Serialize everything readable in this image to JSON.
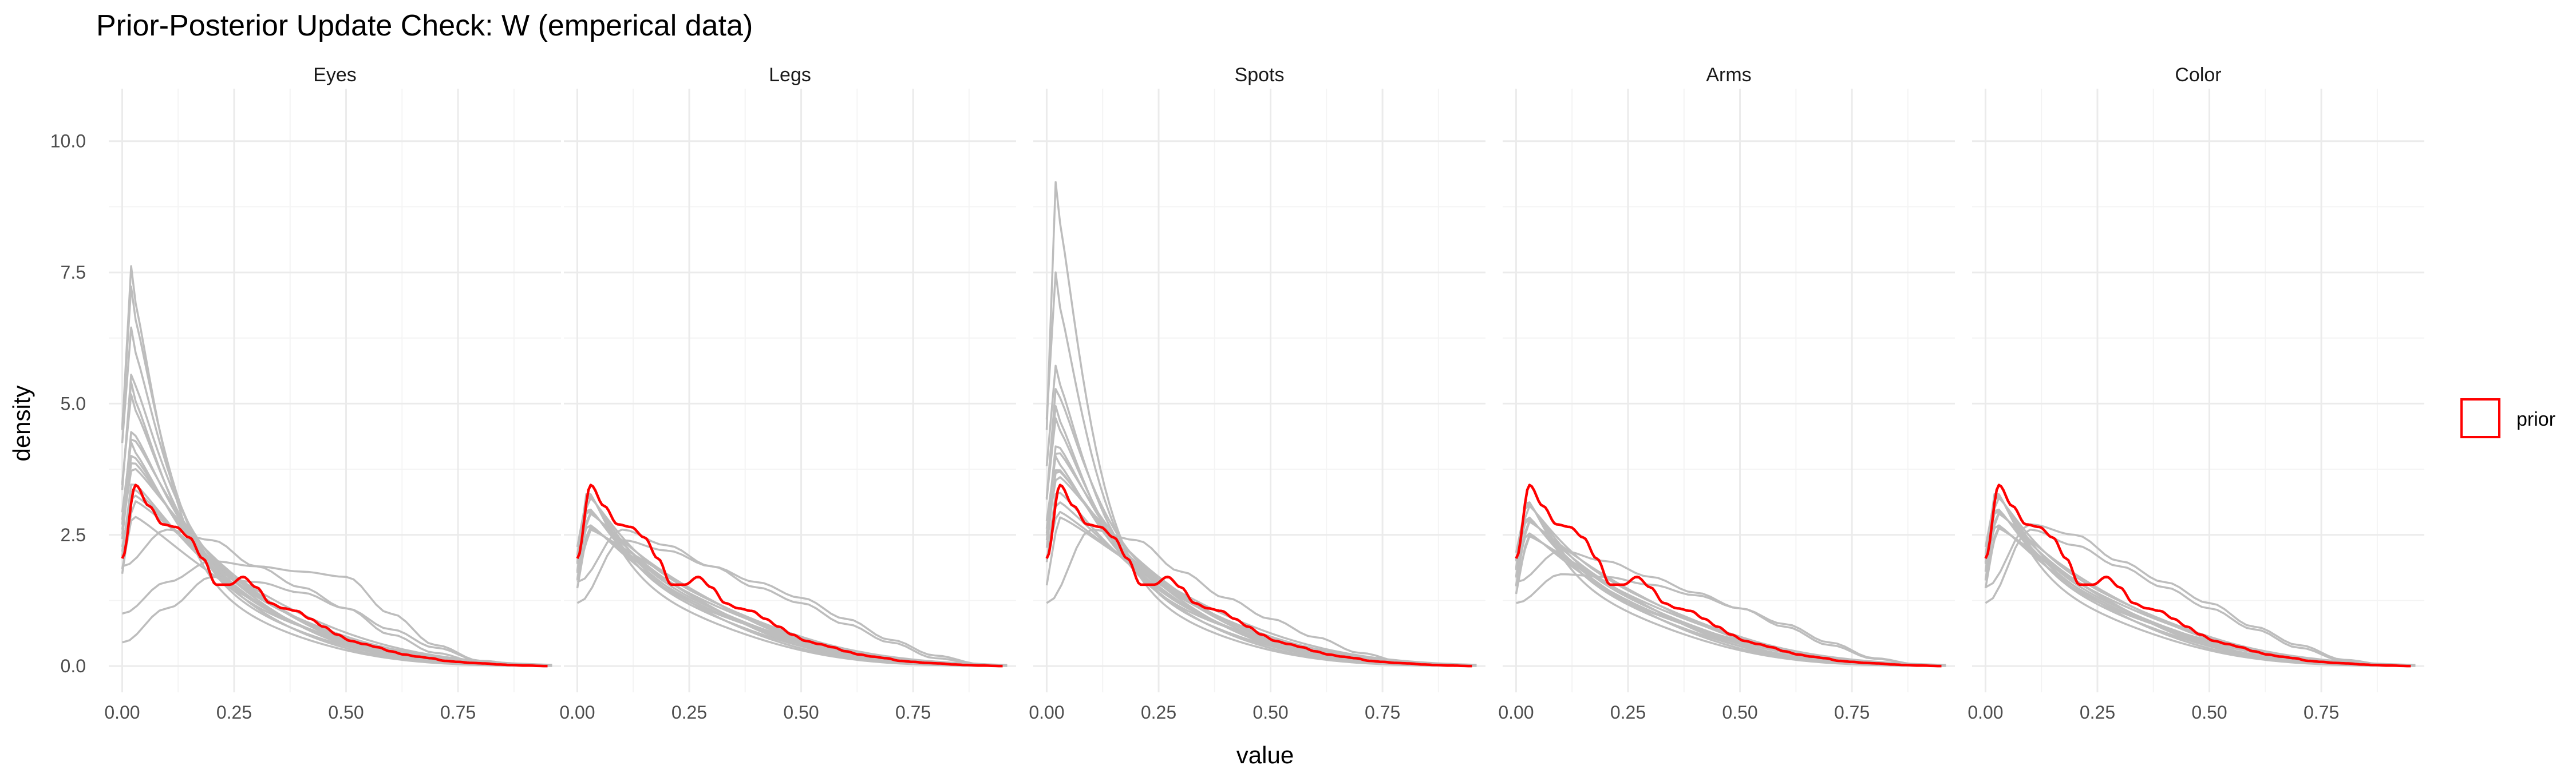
{
  "chart_data": {
    "type": "line",
    "title": "Prior-Posterior Update Check: W (emperical data)",
    "xlabel": "value",
    "ylabel": "density",
    "xlim": [
      -0.03,
      0.98
    ],
    "ylim": [
      -0.5,
      11.0
    ],
    "x_ticks": [
      0.0,
      0.25,
      0.5,
      0.75
    ],
    "x_tick_labels": [
      "0.00",
      "0.25",
      "0.50",
      "0.75"
    ],
    "y_ticks": [
      0.0,
      2.5,
      5.0,
      7.5,
      10.0
    ],
    "y_tick_labels": [
      "0.0",
      "2.5",
      "5.0",
      "7.5",
      "10.0"
    ],
    "legend": {
      "label": "prior",
      "position": "right",
      "color": "#ff0000"
    },
    "colors": {
      "posterior": "#bdbdbd",
      "prior": "#ff0000",
      "grid_major": "#ebebeb",
      "grid_minor": "#f4f4f4"
    },
    "prior": {
      "name": "prior",
      "x": [
        0.0,
        0.03,
        0.06,
        0.09,
        0.12,
        0.15,
        0.18,
        0.21,
        0.24,
        0.27,
        0.3,
        0.33,
        0.36,
        0.39,
        0.42,
        0.45,
        0.48,
        0.51,
        0.54,
        0.57,
        0.6,
        0.63,
        0.66,
        0.69,
        0.72,
        0.75,
        0.78,
        0.81,
        0.84,
        0.87,
        0.9,
        0.95
      ],
      "values": [
        2.05,
        3.45,
        3.05,
        2.7,
        2.65,
        2.45,
        2.05,
        1.55,
        1.55,
        1.7,
        1.5,
        1.2,
        1.1,
        1.05,
        0.9,
        0.75,
        0.6,
        0.48,
        0.42,
        0.36,
        0.28,
        0.22,
        0.18,
        0.15,
        0.1,
        0.08,
        0.06,
        0.05,
        0.03,
        0.02,
        0.01,
        0.0
      ]
    },
    "panels": [
      {
        "label": "Eyes",
        "posterior_peaks": [
          8.4,
          7.9,
          7.0,
          6.1,
          5.9,
          5.6,
          4.9,
          4.7,
          4.6,
          4.4,
          4.2,
          4.0,
          3.8,
          3.6,
          3.4,
          3.2,
          3.0
        ],
        "posterior_broad": [
          {
            "x": [
              0.0,
              0.1,
              0.2,
              0.3,
              0.4,
              0.5,
              0.6,
              0.7,
              0.8,
              0.9,
              0.95
            ],
            "values": [
              1.0,
              1.6,
              2.0,
              1.9,
              1.8,
              1.7,
              1.0,
              0.4,
              0.1,
              0.02,
              0.0
            ]
          },
          {
            "x": [
              0.0,
              0.1,
              0.2,
              0.3,
              0.4,
              0.5,
              0.6,
              0.7,
              0.8,
              0.9,
              0.95
            ],
            "values": [
              0.45,
              1.1,
              1.7,
              1.6,
              1.4,
              1.1,
              0.6,
              0.25,
              0.06,
              0.01,
              0.0
            ]
          },
          {
            "x": [
              0.0,
              0.1,
              0.2,
              0.3,
              0.4,
              0.5,
              0.6,
              0.7,
              0.8,
              0.9,
              0.95
            ],
            "values": [
              1.9,
              2.6,
              2.4,
              1.9,
              1.5,
              1.1,
              0.7,
              0.35,
              0.1,
              0.02,
              0.0
            ]
          }
        ]
      },
      {
        "label": "Legs",
        "posterior_peaks": [
          3.6,
          3.5,
          3.4,
          3.3,
          3.2,
          3.1,
          3.0,
          2.9,
          2.8,
          2.7,
          2.6,
          2.5
        ],
        "posterior_broad": [
          {
            "x": [
              0.0,
              0.1,
              0.2,
              0.3,
              0.4,
              0.5,
              0.6,
              0.7,
              0.8,
              0.9,
              0.95
            ],
            "values": [
              1.2,
              2.4,
              2.2,
              1.9,
              1.6,
              1.3,
              0.9,
              0.5,
              0.2,
              0.04,
              0.0
            ]
          },
          {
            "x": [
              0.0,
              0.1,
              0.2,
              0.3,
              0.4,
              0.5,
              0.6,
              0.7,
              0.8,
              0.9,
              0.95
            ],
            "values": [
              1.6,
              2.6,
              2.3,
              1.9,
              1.5,
              1.2,
              0.8,
              0.45,
              0.15,
              0.03,
              0.0
            ]
          }
        ]
      },
      {
        "label": "Spots",
        "posterior_peaks": [
          10.4,
          8.2,
          6.2,
          5.8,
          5.4,
          5.1,
          4.6,
          4.4,
          4.3,
          4.1,
          4.0,
          3.8,
          3.6,
          3.3,
          3.0,
          2.8
        ],
        "posterior_broad": [
          {
            "x": [
              0.0,
              0.1,
              0.2,
              0.3,
              0.4,
              0.5,
              0.6,
              0.7,
              0.8,
              0.9,
              0.95
            ],
            "values": [
              1.2,
              2.6,
              2.4,
              1.8,
              1.3,
              0.9,
              0.55,
              0.25,
              0.07,
              0.01,
              0.0
            ]
          }
        ]
      },
      {
        "label": "Arms",
        "posterior_peaks": [
          3.4,
          3.3,
          3.2,
          3.1,
          3.0,
          2.9,
          2.8,
          2.7,
          2.6,
          2.5,
          2.4
        ],
        "posterior_broad": [
          {
            "x": [
              0.0,
              0.1,
              0.2,
              0.3,
              0.4,
              0.5,
              0.6,
              0.7,
              0.8,
              0.9,
              0.95
            ],
            "values": [
              1.2,
              1.75,
              1.7,
              1.55,
              1.35,
              1.1,
              0.8,
              0.45,
              0.15,
              0.03,
              0.0
            ]
          },
          {
            "x": [
              0.0,
              0.1,
              0.2,
              0.3,
              0.4,
              0.5,
              0.6,
              0.7,
              0.8,
              0.9,
              0.95
            ],
            "values": [
              1.6,
              2.2,
              2.0,
              1.7,
              1.4,
              1.1,
              0.75,
              0.4,
              0.14,
              0.03,
              0.0
            ]
          }
        ]
      },
      {
        "label": "Color",
        "posterior_peaks": [
          3.6,
          3.5,
          3.4,
          3.3,
          3.2,
          3.1,
          3.0,
          2.9,
          2.8,
          2.7,
          2.6
        ],
        "posterior_broad": [
          {
            "x": [
              0.0,
              0.1,
              0.2,
              0.3,
              0.4,
              0.5,
              0.6,
              0.7,
              0.8,
              0.9,
              0.95
            ],
            "values": [
              1.2,
              2.6,
              2.3,
              1.9,
              1.5,
              1.1,
              0.7,
              0.35,
              0.1,
              0.02,
              0.0
            ]
          },
          {
            "x": [
              0.0,
              0.1,
              0.2,
              0.3,
              0.4,
              0.5,
              0.6,
              0.7,
              0.8,
              0.9,
              0.95
            ],
            "values": [
              1.5,
              2.7,
              2.5,
              2.0,
              1.6,
              1.2,
              0.75,
              0.4,
              0.12,
              0.02,
              0.0
            ]
          }
        ]
      }
    ]
  }
}
